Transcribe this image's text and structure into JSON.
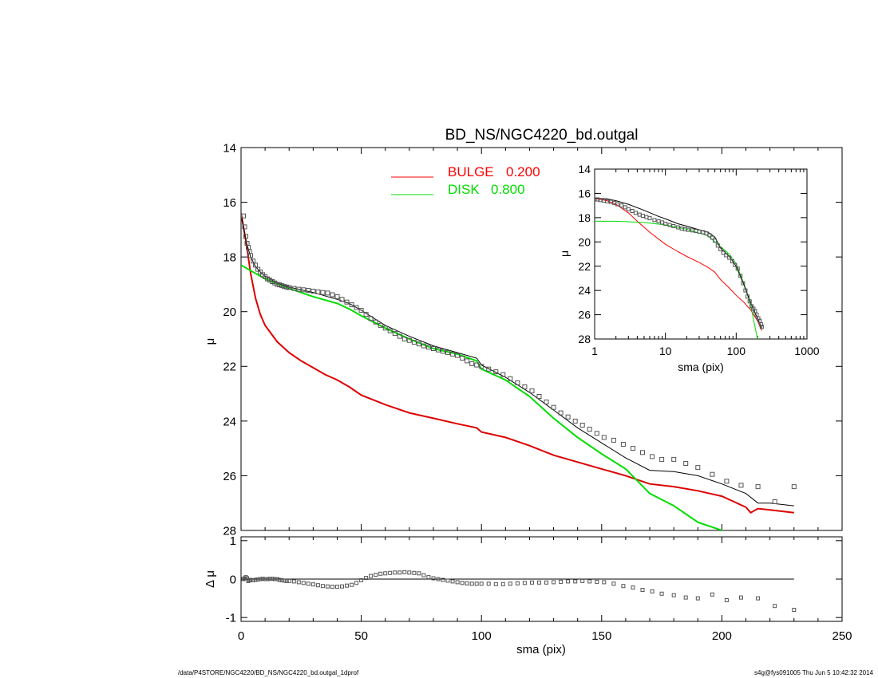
{
  "chart_data": [
    {
      "type": "line",
      "title": "BD_NS/NGC4220_bd.outgal",
      "xlabel": "",
      "ylabel": "μ",
      "xlim": [
        0,
        250
      ],
      "ylim": [
        28,
        14
      ],
      "y_inverted": true,
      "xticks": [
        0,
        50,
        100,
        150,
        200,
        250
      ],
      "yticks": [
        14,
        16,
        18,
        20,
        22,
        24,
        26,
        28
      ],
      "legend_position": "top-center",
      "legend": [
        {
          "label": "BULGE",
          "value": "0.200",
          "color": "#ff0000"
        },
        {
          "label": "DISK",
          "value": "0.800",
          "color": "#00dd00"
        }
      ],
      "series": [
        {
          "name": "BULGE",
          "color": "#dd0000",
          "x": [
            0,
            2,
            4,
            6,
            8,
            10,
            15,
            20,
            25,
            30,
            35,
            40,
            45,
            50,
            60,
            70,
            80,
            90,
            98,
            100,
            110,
            120,
            130,
            140,
            150,
            160,
            170,
            180,
            190,
            200,
            205,
            210,
            212,
            215,
            220,
            230
          ],
          "y": [
            16.4,
            17.4,
            18.6,
            19.5,
            20.1,
            20.5,
            21.1,
            21.5,
            21.8,
            22.05,
            22.3,
            22.5,
            22.75,
            23.05,
            23.4,
            23.7,
            23.9,
            24.1,
            24.25,
            24.4,
            24.6,
            24.9,
            25.25,
            25.5,
            25.75,
            26.0,
            26.3,
            26.4,
            26.55,
            26.75,
            26.95,
            27.15,
            27.35,
            27.2,
            27.25,
            27.35
          ]
        },
        {
          "name": "DISK",
          "color": "#00dd00",
          "x": [
            0,
            5,
            10,
            20,
            30,
            40,
            45,
            50,
            60,
            70,
            80,
            90,
            98,
            100,
            110,
            120,
            130,
            140,
            150,
            160,
            165,
            170,
            180,
            190,
            200,
            202
          ],
          "y": [
            18.3,
            18.55,
            18.8,
            19.15,
            19.45,
            19.7,
            19.9,
            20.15,
            20.6,
            21.0,
            21.35,
            21.55,
            21.8,
            22.1,
            22.5,
            23.1,
            23.9,
            24.6,
            25.2,
            25.75,
            26.2,
            26.65,
            27.1,
            27.7,
            28.0,
            28.2
          ]
        },
        {
          "name": "",
          "color": "#000000",
          "x": [
            0,
            2,
            4,
            6,
            8,
            10,
            15,
            20,
            30,
            40,
            45,
            50,
            60,
            70,
            80,
            90,
            98,
            100,
            110,
            120,
            130,
            140,
            150,
            160,
            170,
            180,
            190,
            200,
            210,
            215,
            220,
            230
          ],
          "y": [
            16.4,
            17.4,
            18.0,
            18.35,
            18.55,
            18.7,
            18.95,
            19.1,
            19.3,
            19.55,
            19.7,
            19.95,
            20.5,
            20.9,
            21.25,
            21.5,
            21.7,
            21.95,
            22.4,
            22.95,
            23.6,
            24.25,
            24.8,
            25.35,
            25.8,
            25.85,
            26.0,
            26.3,
            26.65,
            27.0,
            27.0,
            27.1
          ]
        },
        {
          "name": "",
          "type": "scatter",
          "color": "#555555",
          "x": [
            1,
            1.5,
            2,
            2.5,
            3,
            3.5,
            4,
            5,
            6,
            7,
            8,
            9,
            10,
            11,
            12,
            13,
            14,
            15,
            16,
            17,
            18,
            19,
            20,
            22,
            24,
            26,
            28,
            30,
            32,
            34,
            36,
            38,
            40,
            42,
            44,
            46,
            48,
            50,
            52,
            54,
            56,
            58,
            60,
            62,
            64,
            66,
            68,
            70,
            72,
            74,
            76,
            78,
            80,
            82,
            84,
            86,
            88,
            90,
            92,
            94,
            96,
            98,
            100,
            103,
            106,
            109,
            112,
            115,
            118,
            121,
            124,
            127,
            130,
            133,
            136,
            139,
            142,
            145,
            148,
            151,
            155,
            159,
            163,
            167,
            171,
            175,
            180,
            185,
            190,
            196,
            202,
            208,
            215,
            222,
            230
          ],
          "y": [
            16.5,
            16.9,
            17.25,
            17.5,
            17.65,
            17.8,
            17.95,
            18.15,
            18.3,
            18.45,
            18.55,
            18.65,
            18.72,
            18.8,
            18.85,
            18.9,
            18.95,
            19.0,
            19.02,
            19.05,
            19.08,
            19.1,
            19.12,
            19.15,
            19.18,
            19.2,
            19.22,
            19.25,
            19.28,
            19.3,
            19.32,
            19.38,
            19.45,
            19.55,
            19.65,
            19.75,
            19.85,
            19.95,
            20.1,
            20.25,
            20.38,
            20.5,
            20.6,
            20.7,
            20.8,
            20.9,
            21.0,
            21.05,
            21.12,
            21.18,
            21.25,
            21.3,
            21.35,
            21.4,
            21.45,
            21.5,
            21.55,
            21.6,
            21.7,
            21.8,
            21.9,
            21.95,
            22.0,
            22.1,
            22.2,
            22.3,
            22.45,
            22.6,
            22.75,
            22.9,
            23.1,
            23.3,
            23.5,
            23.7,
            23.85,
            24.0,
            24.15,
            24.3,
            24.45,
            24.6,
            24.7,
            24.85,
            25.0,
            25.15,
            25.3,
            25.4,
            25.4,
            25.55,
            25.7,
            25.95,
            26.2,
            26.35,
            26.4,
            26.95,
            26.4
          ]
        }
      ]
    },
    {
      "type": "scatter",
      "title": "",
      "xlabel": "sma (pix)",
      "ylabel": "Δ μ",
      "xlim": [
        0,
        250
      ],
      "ylim": [
        -1.1,
        1.1
      ],
      "xticks": [
        0,
        50,
        100,
        150,
        200,
        250
      ],
      "yticks": [
        1,
        0,
        -1
      ],
      "reference_line": {
        "y": 0,
        "x": [
          0,
          230
        ]
      },
      "series": [
        {
          "name": "",
          "color": "#555555",
          "x": [
            1,
            1.5,
            2,
            2.5,
            3,
            3.5,
            4,
            5,
            6,
            7,
            8,
            9,
            10,
            11,
            12,
            13,
            14,
            15,
            16,
            17,
            18,
            19,
            20,
            22,
            24,
            26,
            28,
            30,
            32,
            34,
            36,
            38,
            40,
            42,
            44,
            46,
            48,
            50,
            52,
            54,
            56,
            58,
            60,
            62,
            64,
            66,
            68,
            70,
            72,
            74,
            76,
            78,
            80,
            82,
            84,
            86,
            88,
            90,
            92,
            94,
            96,
            98,
            100,
            103,
            106,
            109,
            112,
            115,
            118,
            121,
            124,
            127,
            130,
            133,
            136,
            139,
            142,
            145,
            148,
            151,
            155,
            159,
            163,
            167,
            171,
            175,
            180,
            185,
            190,
            196,
            202,
            208,
            215,
            222,
            230
          ],
          "y": [
            0.0,
            0.02,
            0.05,
            0.02,
            -0.05,
            -0.03,
            -0.02,
            -0.03,
            -0.02,
            -0.01,
            0.0,
            0.01,
            0.0,
            0.0,
            0.01,
            0.01,
            0.0,
            0.0,
            -0.02,
            -0.03,
            -0.04,
            -0.05,
            -0.05,
            -0.06,
            -0.08,
            -0.1,
            -0.12,
            -0.14,
            -0.16,
            -0.18,
            -0.19,
            -0.2,
            -0.2,
            -0.19,
            -0.17,
            -0.15,
            -0.1,
            -0.03,
            0.03,
            0.08,
            0.11,
            0.14,
            0.15,
            0.16,
            0.17,
            0.17,
            0.18,
            0.17,
            0.16,
            0.15,
            0.1,
            0.05,
            0.02,
            0.0,
            -0.02,
            -0.04,
            -0.06,
            -0.08,
            -0.1,
            -0.11,
            -0.12,
            -0.12,
            -0.12,
            -0.12,
            -0.13,
            -0.13,
            -0.12,
            -0.11,
            -0.1,
            -0.09,
            -0.09,
            -0.09,
            -0.08,
            -0.07,
            -0.06,
            -0.06,
            -0.05,
            -0.06,
            -0.07,
            -0.08,
            -0.12,
            -0.18,
            -0.22,
            -0.28,
            -0.32,
            -0.38,
            -0.42,
            -0.48,
            -0.5,
            -0.4,
            -0.55,
            -0.48,
            -0.5,
            -0.7,
            -0.8
          ]
        }
      ]
    },
    {
      "type": "line",
      "title": "",
      "xlabel": "sma (pix)",
      "ylabel": "μ",
      "x_scale": "log",
      "xlim": [
        1,
        1000
      ],
      "ylim": [
        28,
        14
      ],
      "y_inverted": true,
      "xticks": [
        1,
        10,
        100,
        1000
      ],
      "yticks": [
        14,
        16,
        18,
        20,
        22,
        24,
        26,
        28
      ],
      "series": [
        {
          "name": "BULGE",
          "color": "#ff0000",
          "x": [
            1,
            1.5,
            2,
            3,
            4,
            6,
            10,
            15,
            20,
            30,
            40,
            50,
            60,
            80,
            100,
            130,
            160,
            200,
            230
          ],
          "y": [
            16.4,
            16.6,
            16.9,
            17.6,
            18.3,
            19.2,
            20.2,
            20.8,
            21.2,
            21.7,
            22.1,
            22.5,
            23.1,
            23.8,
            24.4,
            25.0,
            25.6,
            26.5,
            27.3
          ]
        },
        {
          "name": "DISK",
          "color": "#00dd00",
          "x": [
            1,
            2,
            5,
            10,
            20,
            40,
            60,
            80,
            100,
            130,
            160,
            200
          ],
          "y": [
            18.3,
            18.3,
            18.4,
            18.6,
            18.95,
            19.5,
            20.4,
            21.0,
            21.8,
            23.5,
            25.2,
            28.0
          ]
        },
        {
          "name": "",
          "color": "#000000",
          "x": [
            1,
            1.5,
            2,
            3,
            5,
            8,
            10,
            15,
            20,
            30,
            40,
            50,
            60,
            80,
            100,
            130,
            160,
            200,
            230
          ],
          "y": [
            16.4,
            16.45,
            16.6,
            16.9,
            17.4,
            17.9,
            18.1,
            18.5,
            18.7,
            19.0,
            19.2,
            19.6,
            20.5,
            21.2,
            22.0,
            23.6,
            25.0,
            26.3,
            27.1
          ]
        },
        {
          "name": "",
          "type": "scatter",
          "color": "#555555",
          "x": [
            1,
            1.1,
            1.2,
            1.35,
            1.5,
            1.7,
            1.9,
            2.1,
            2.4,
            2.7,
            3,
            3.4,
            3.8,
            4.3,
            4.8,
            5.4,
            6,
            7,
            8,
            9,
            10,
            11.5,
            13,
            15,
            17,
            19,
            21,
            24,
            27,
            30,
            34,
            38,
            42,
            46,
            50,
            55,
            60,
            66,
            72,
            80,
            88,
            96,
            105,
            115,
            125,
            135,
            145,
            155,
            165,
            175,
            185,
            195,
            205,
            215,
            225,
            230
          ],
          "y": [
            16.5,
            16.5,
            16.55,
            16.6,
            16.65,
            16.7,
            16.8,
            16.9,
            17.0,
            17.15,
            17.3,
            17.45,
            17.6,
            17.75,
            17.85,
            17.95,
            18.05,
            18.2,
            18.3,
            18.4,
            18.5,
            18.6,
            18.7,
            18.8,
            18.9,
            18.95,
            19.0,
            19.05,
            19.1,
            19.15,
            19.2,
            19.3,
            19.45,
            19.65,
            19.9,
            20.3,
            20.6,
            20.9,
            21.1,
            21.3,
            21.6,
            21.9,
            22.2,
            22.8,
            23.4,
            24.0,
            24.5,
            24.9,
            25.3,
            25.5,
            25.7,
            26.0,
            26.3,
            26.5,
            26.8,
            27.0
          ]
        }
      ]
    }
  ],
  "footer": {
    "left": "/data/P4STORE/NGC4220/BD_NS/NGC4220_bd.outgal_1dprof",
    "right": "s4g@fys091005  Thu Jun  5 10:42:32 2014"
  }
}
